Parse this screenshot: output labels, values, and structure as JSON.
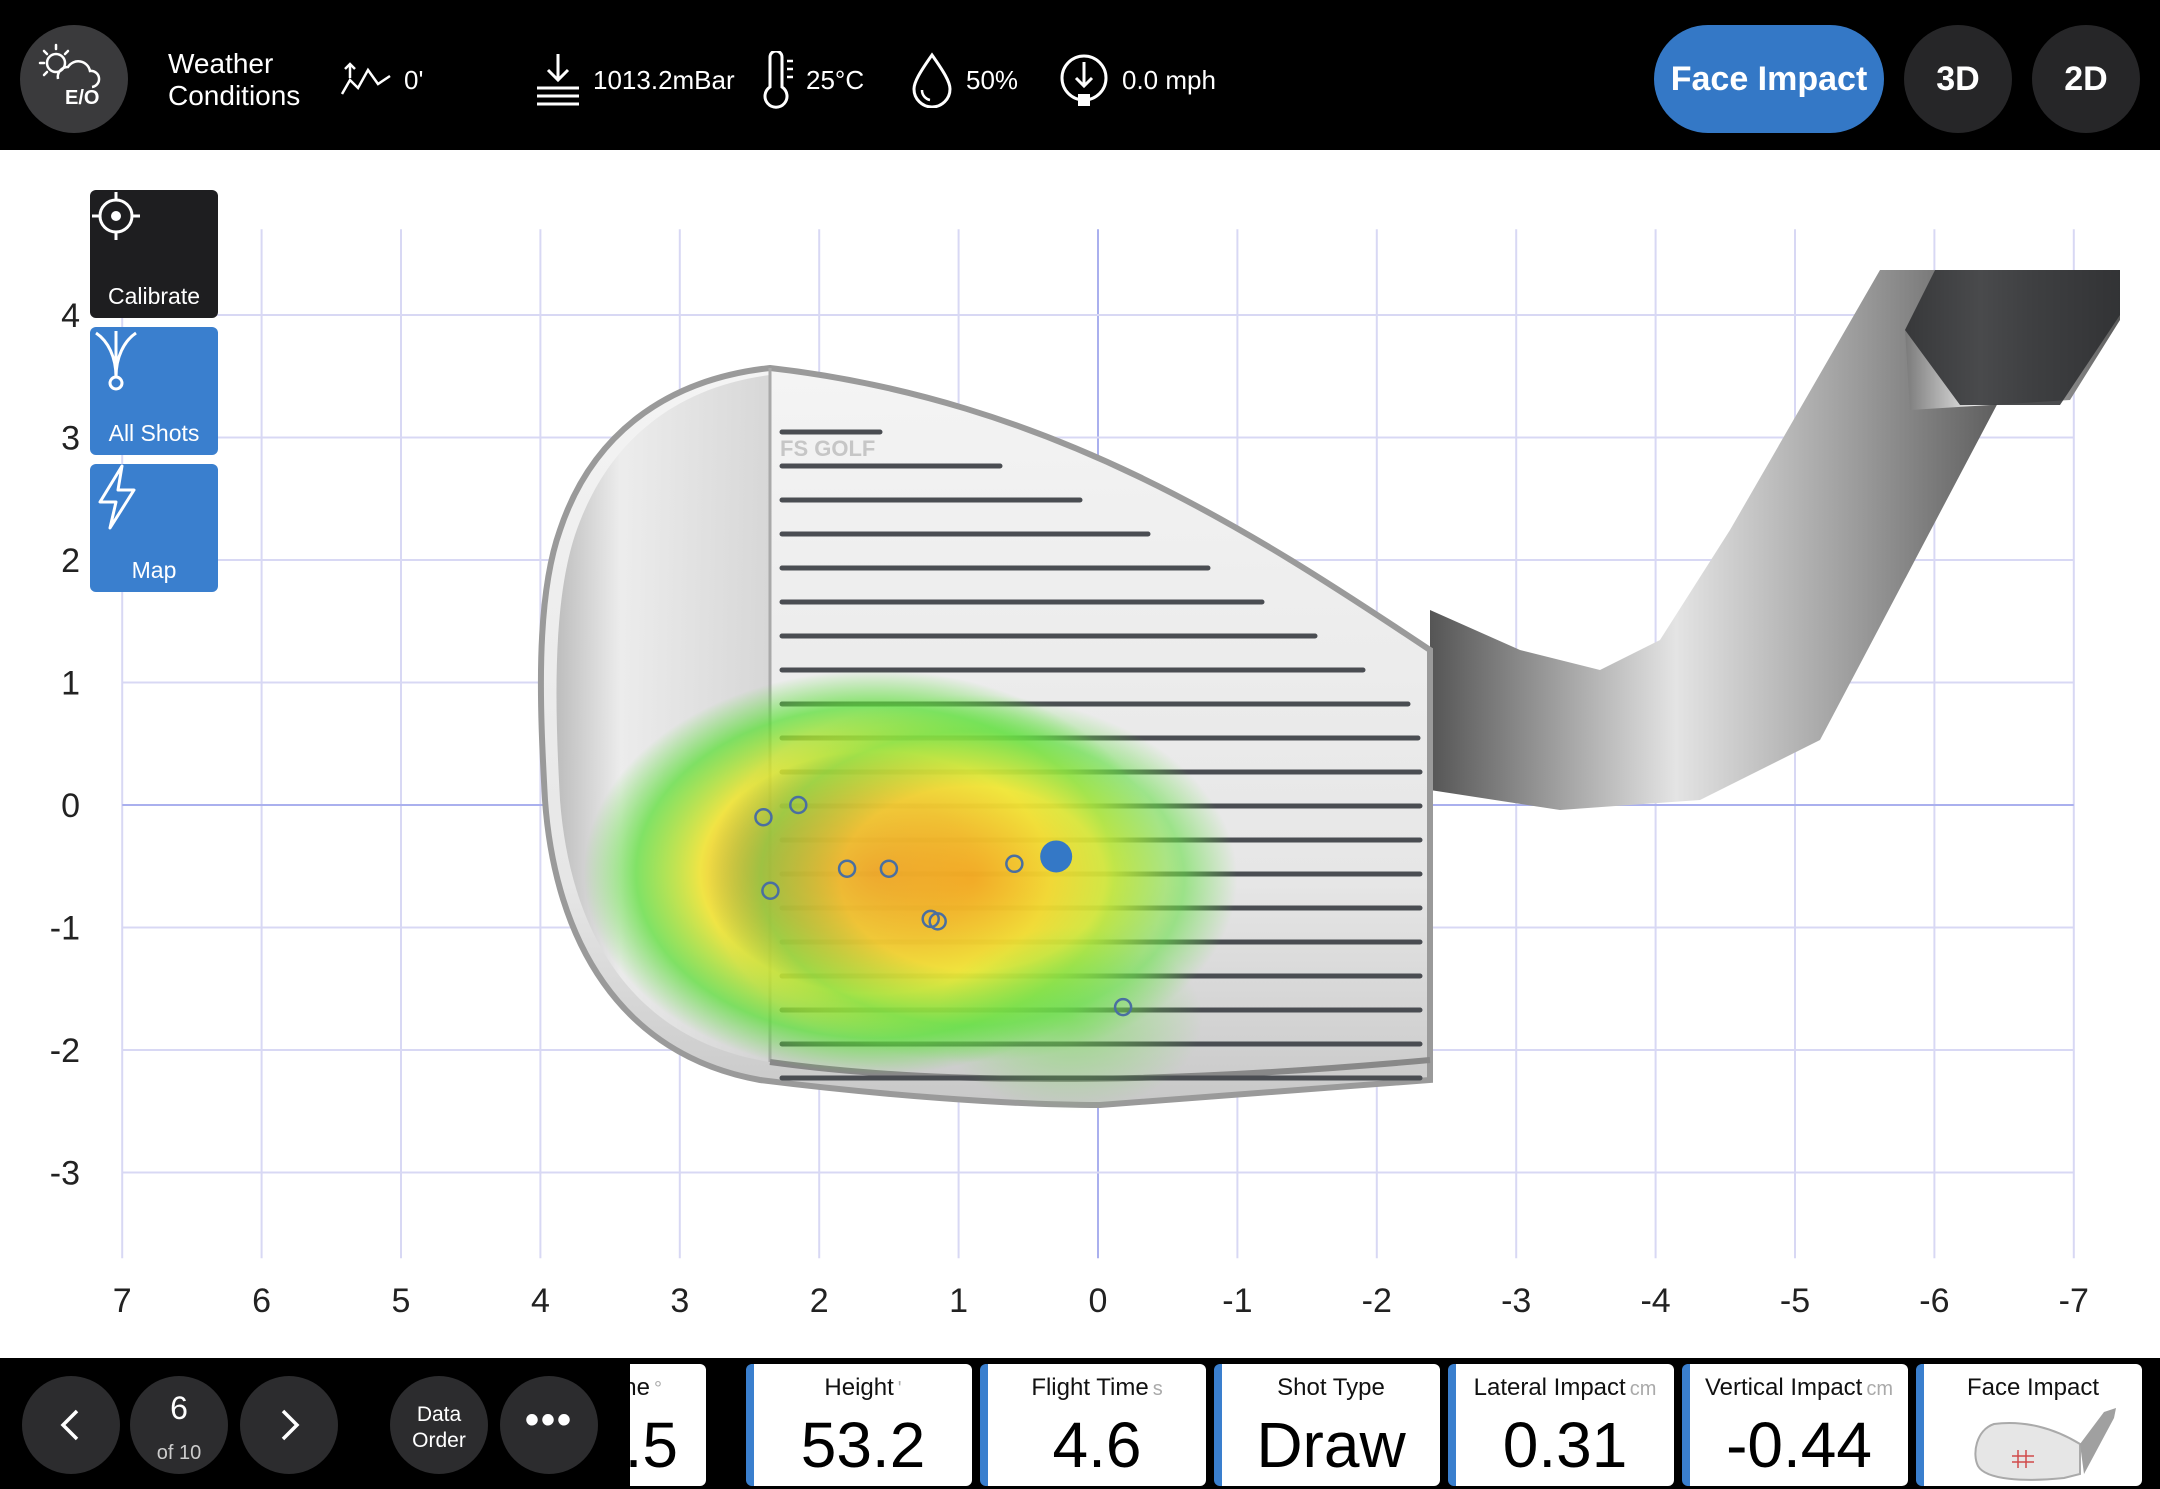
{
  "weather": {
    "eo_label": "E/O",
    "title_line1": "Weather",
    "title_line2": "Conditions",
    "altitude": "0'",
    "pressure": "1013.2mBar",
    "temperature": "25°C",
    "humidity": "50%",
    "wind": "0.0 mph"
  },
  "view_modes": [
    {
      "label": "Face Impact",
      "active": true
    },
    {
      "label": "3D",
      "active": false
    },
    {
      "label": "2D",
      "active": false
    }
  ],
  "tools": {
    "calibrate": "Calibrate",
    "all_shots": "All Shots",
    "map": "Map"
  },
  "club_face": {
    "brand_text": "FS GOLF"
  },
  "chart_data": {
    "type": "scatter",
    "x_ticks": [
      7,
      6,
      5,
      4,
      3,
      2,
      1,
      0,
      -1,
      -2,
      -3,
      -4,
      -5,
      -6,
      -7
    ],
    "y_ticks": [
      4,
      3,
      2,
      1,
      0,
      -1,
      -2,
      -3
    ],
    "xlim": [
      7,
      -7
    ],
    "ylim": [
      -3.7,
      4.7
    ],
    "grid": true,
    "shots": [
      {
        "x": 2.4,
        "y": -0.1
      },
      {
        "x": 2.15,
        "y": 0.0
      },
      {
        "x": 2.35,
        "y": -0.7
      },
      {
        "x": 1.8,
        "y": -0.52
      },
      {
        "x": 1.5,
        "y": -0.52
      },
      {
        "x": 1.2,
        "y": -0.93
      },
      {
        "x": 1.15,
        "y": -0.95
      },
      {
        "x": 0.6,
        "y": -0.48
      },
      {
        "x": -0.18,
        "y": -1.65
      }
    ],
    "current_shot": {
      "x": 0.3,
      "y": -0.42
    },
    "heatmap": [
      {
        "x": 1.6,
        "y": -0.55,
        "w": 2.2,
        "intensity": 1.0
      },
      {
        "x": 0.9,
        "y": -0.6,
        "w": 2.0,
        "intensity": 0.7
      },
      {
        "x": 0.2,
        "y": -1.75,
        "w": 1.0,
        "intensity": 0.35
      }
    ]
  },
  "navigation": {
    "current": "6",
    "of_label": "of 10",
    "data_order_line1": "Data",
    "data_order_line2": "Order",
    "more": "•••"
  },
  "tiles": [
    {
      "label": "ane",
      "unit": "°",
      "value": ".5",
      "partial": true
    },
    {
      "label": "Height",
      "unit": "'",
      "value": "53.2"
    },
    {
      "label": "Flight Time",
      "unit": "s",
      "value": "4.6"
    },
    {
      "label": "Shot Type",
      "unit": "",
      "value": "Draw"
    },
    {
      "label": "Lateral Impact",
      "unit": "cm",
      "value": "0.31"
    },
    {
      "label": "Vertical Impact",
      "unit": "cm",
      "value": "-0.44"
    },
    {
      "label": "Face Impact",
      "unit": "",
      "value": ""
    }
  ],
  "colors": {
    "accent": "#3478c6",
    "heat_hot": "#e8291c",
    "heat_warm": "#f3e52a",
    "heat_cool": "#5ee03a",
    "shot_marker": "#4a6fa0"
  }
}
